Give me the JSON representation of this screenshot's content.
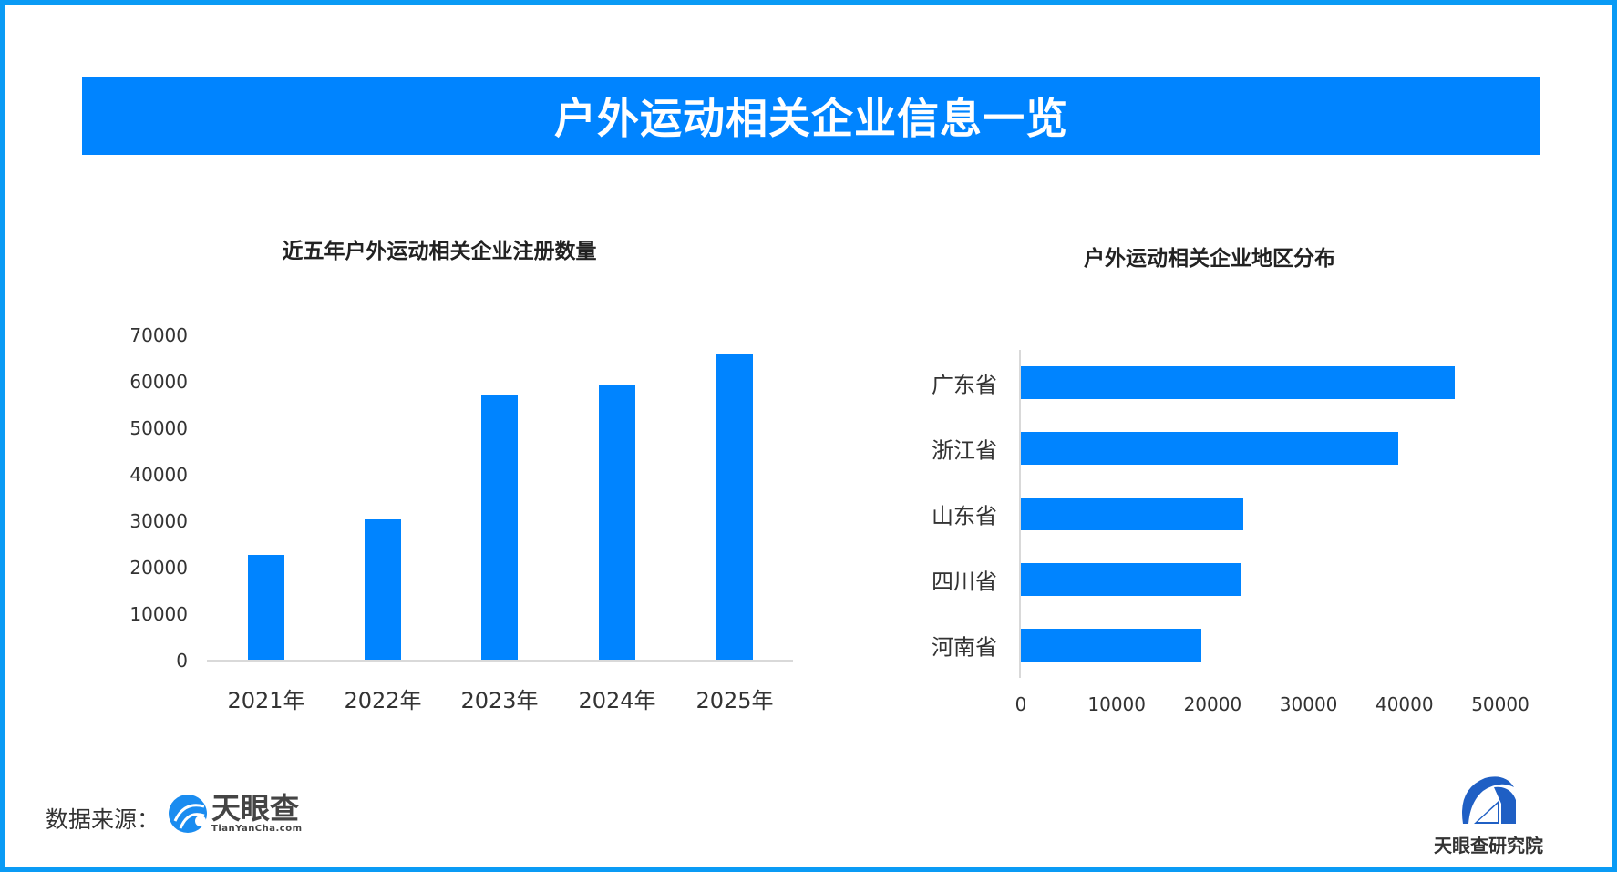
{
  "banner": {
    "title": "户外运动相关企业信息一览"
  },
  "colors": {
    "accent": "#0084ff",
    "frame": "#0a9bf5",
    "axis": "#d9d9d9"
  },
  "left_chart": {
    "title": "近五年户外运动相关企业注册数量",
    "y_ticks": [
      "70000",
      "60000",
      "50000",
      "40000",
      "30000",
      "20000",
      "10000",
      "0"
    ],
    "x_labels": [
      "2021年",
      "2022年",
      "2023年",
      "2024年",
      "2025年"
    ]
  },
  "right_chart": {
    "title": "户外运动相关企业地区分布",
    "categories": [
      "广东省",
      "浙江省",
      "山东省",
      "四川省",
      "河南省"
    ],
    "x_ticks": [
      "0",
      "10000",
      "20000",
      "30000",
      "40000",
      "50000"
    ]
  },
  "footer": {
    "source_label": "数据来源：",
    "source_logo_cn": "天眼查",
    "source_logo_en": "TianYanCha.com",
    "institute": "天眼查研究院"
  },
  "chart_data": [
    {
      "type": "bar",
      "title": "近五年户外运动相关企业注册数量",
      "categories": [
        "2021年",
        "2022年",
        "2023年",
        "2024年",
        "2025年"
      ],
      "values": [
        22800,
        30400,
        57200,
        59200,
        66100
      ],
      "xlabel": "",
      "ylabel": "",
      "ylim": [
        0,
        70000
      ],
      "y_ticks": [
        0,
        10000,
        20000,
        30000,
        40000,
        50000,
        60000,
        70000
      ],
      "grid": false,
      "legend": null,
      "color": "#0084ff"
    },
    {
      "type": "bar",
      "orientation": "horizontal",
      "title": "户外运动相关企业地区分布",
      "categories": [
        "广东省",
        "浙江省",
        "山东省",
        "四川省",
        "河南省"
      ],
      "values": [
        45200,
        39400,
        23200,
        23000,
        18800
      ],
      "xlabel": "",
      "ylabel": "",
      "xlim": [
        0,
        50000
      ],
      "x_ticks": [
        0,
        10000,
        20000,
        30000,
        40000,
        50000
      ],
      "grid": false,
      "legend": null,
      "color": "#0084ff"
    }
  ]
}
